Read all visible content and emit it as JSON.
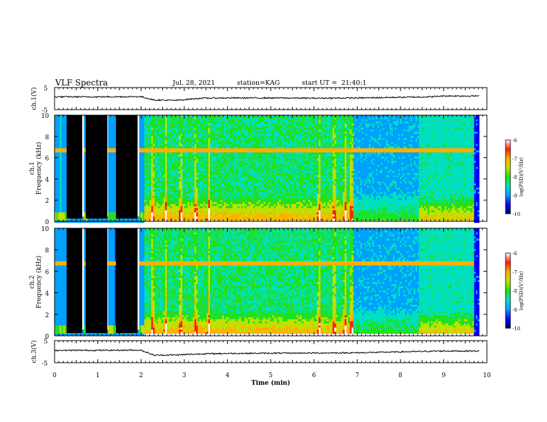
{
  "header": {
    "title": "VLF Spectra",
    "date": "Jul. 28, 2021",
    "station": "station=KAG",
    "start": "start UT =  21:40:1"
  },
  "chart_data": [
    {
      "type": "line",
      "title": "",
      "ylabel": "ch.1(V)",
      "ylim": [
        -5,
        5
      ],
      "yticks": [
        "5",
        "-5"
      ],
      "xlim": [
        0,
        10
      ],
      "note_series": "baseline waveform near +1 V with small fluctuations and a step to ~0 V between 2.3 and 3.4 min",
      "series": [
        {
          "x": [
            0,
            1,
            2,
            2.3,
            2.8,
            3.4,
            4,
            5,
            6,
            7,
            8,
            8.7,
            9,
            9.8
          ],
          "values": [
            0.8,
            0.8,
            0.9,
            -0.6,
            -0.8,
            0.2,
            0.3,
            0.3,
            0.2,
            0.3,
            0.6,
            0.8,
            1.2,
            1.2
          ]
        }
      ]
    },
    {
      "type": "heatmap",
      "ylabel": "ch.1 Frequency (kHz)",
      "ylim": [
        0,
        10
      ],
      "yticks": [
        "0",
        "2",
        "4",
        "6",
        "8",
        "10"
      ],
      "xlim": [
        0,
        10
      ],
      "colorbar": {
        "label": "log(PSD)(V²/Hz)",
        "range": [
          -10,
          -6
        ],
        "ticks": [
          "-6",
          "-7",
          "-8",
          "-9",
          "-10"
        ]
      },
      "features": {
        "steady_line_kHz": 6.8,
        "black_intervals_min": [
          [
            0.28,
            0.64
          ],
          [
            0.72,
            1.22
          ],
          [
            1.42,
            1.92
          ]
        ],
        "high_noise_bursts_min": [
          2.25,
          2.55,
          2.9,
          3.25,
          3.55,
          6.1,
          6.45,
          6.7,
          6.85
        ]
      }
    },
    {
      "type": "heatmap",
      "ylabel": "ch.2 Frequency (kHz)",
      "ylim": [
        0,
        10
      ],
      "yticks": [
        "0",
        "2",
        "4",
        "6",
        "8",
        "10"
      ],
      "xlim": [
        0,
        10
      ],
      "colorbar": {
        "label": "log(PSD)(V²/Hz)",
        "range": [
          -10,
          -6
        ],
        "ticks": [
          "-6",
          "-7",
          "-8",
          "-9",
          "-10"
        ]
      },
      "features": {
        "steady_line_kHz": 6.8,
        "black_intervals_min": [
          [
            0.28,
            0.64
          ],
          [
            0.72,
            1.22
          ],
          [
            1.42,
            1.92
          ]
        ],
        "high_noise_bursts_min": [
          2.25,
          2.55,
          2.9,
          3.25,
          3.55,
          6.1,
          6.45,
          6.7,
          6.85
        ]
      }
    },
    {
      "type": "line",
      "ylabel": "ch.3(V)",
      "ylim": [
        -5,
        5
      ],
      "yticks": [
        "5",
        "-5"
      ],
      "xlim": [
        0,
        10
      ],
      "series": [
        {
          "x": [
            0,
            1,
            2,
            2.3,
            2.8,
            3.4,
            4,
            5,
            6,
            7,
            8,
            8.7,
            9,
            9.8
          ],
          "values": [
            0.6,
            0.6,
            0.7,
            -1.6,
            -1.5,
            -1.0,
            -0.8,
            -0.7,
            -0.6,
            -0.5,
            -0.1,
            0.2,
            0.3,
            0.3
          ]
        }
      ]
    }
  ],
  "xaxis": {
    "label": "Time (min)",
    "ticks": [
      "0",
      "1",
      "2",
      "3",
      "4",
      "5",
      "6",
      "7",
      "8",
      "9",
      "10"
    ]
  },
  "colors": {
    "scale": [
      "#000060",
      "#0000ff",
      "#00a0ff",
      "#00e0c0",
      "#20e020",
      "#c0e000",
      "#ffb000",
      "#ff2000",
      "#ffffff"
    ],
    "line": "#000000"
  }
}
